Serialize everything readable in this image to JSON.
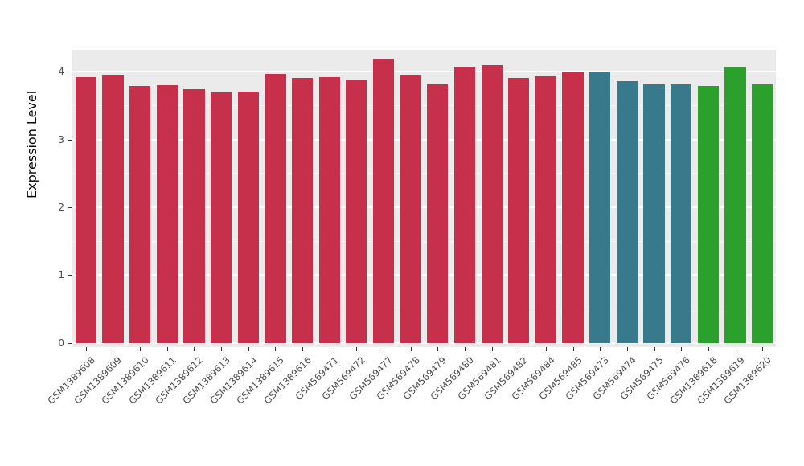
{
  "chart_data": {
    "type": "bar",
    "title": "",
    "xlabel": "",
    "ylabel": "Expression Level",
    "ylim": [
      0,
      4.3
    ],
    "yticks": [
      0,
      1,
      2,
      3,
      4
    ],
    "yticks_minor": [
      0.5,
      1.5,
      2.5,
      3.5
    ],
    "grid": "on",
    "legend": "none",
    "categories": [
      "GSM1389608",
      "GSM1389609",
      "GSM1389610",
      "GSM1389611",
      "GSM1389612",
      "GSM1389613",
      "GSM1389614",
      "GSM1389615",
      "GSM1389616",
      "GSM569471",
      "GSM569472",
      "GSM569477",
      "GSM569478",
      "GSM569479",
      "GSM569480",
      "GSM569481",
      "GSM569482",
      "GSM569484",
      "GSM569485",
      "GSM569473",
      "GSM569474",
      "GSM569475",
      "GSM569476",
      "GSM1389618",
      "GSM1389619",
      "GSM1389620"
    ],
    "values": [
      3.92,
      3.95,
      3.79,
      3.8,
      3.74,
      3.69,
      3.71,
      3.96,
      3.91,
      3.92,
      3.88,
      4.18,
      3.95,
      3.81,
      4.07,
      4.09,
      3.9,
      3.93,
      4.0,
      4.0,
      3.86,
      3.81,
      3.81,
      3.79,
      4.07,
      3.81
    ],
    "bar_colors": [
      "#C7304B",
      "#C7304B",
      "#C7304B",
      "#C7304B",
      "#C7304B",
      "#C7304B",
      "#C7304B",
      "#C7304B",
      "#C7304B",
      "#C7304B",
      "#C7304B",
      "#C7304B",
      "#C7304B",
      "#C7304B",
      "#C7304B",
      "#C7304B",
      "#C7304B",
      "#C7304B",
      "#C7304B",
      "#39798C",
      "#39798C",
      "#39798C",
      "#39798C",
      "#2CA02C",
      "#2CA02C",
      "#2CA02C"
    ]
  },
  "colors": {
    "group_red": "#C7304B",
    "group_teal": "#39798C",
    "group_green": "#2CA02C",
    "panel_background": "#EBEBEB",
    "gridline": "#FFFFFF",
    "tick_text": "#4D4D4D",
    "axis_title_text": "#000000"
  }
}
